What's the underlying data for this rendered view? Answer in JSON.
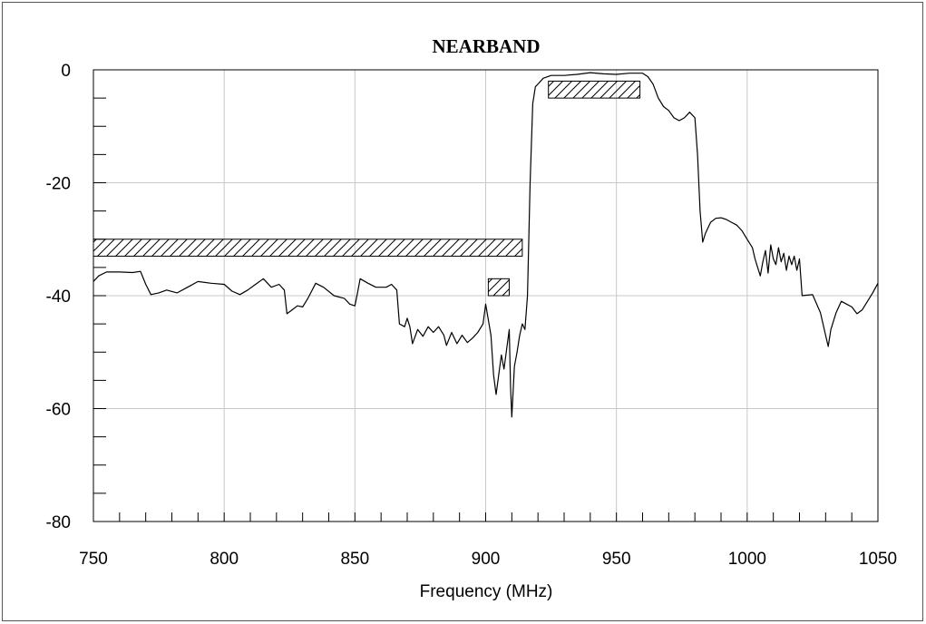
{
  "chart_data": {
    "type": "line",
    "title": "NEARBAND",
    "xlabel": "Frequency (MHz)",
    "ylabel": "",
    "xlim": [
      750,
      1050
    ],
    "ylim": [
      -80,
      0
    ],
    "grid": true,
    "x_ticks": [
      750,
      800,
      850,
      900,
      950,
      1000,
      1050
    ],
    "y_ticks": [
      0,
      -20,
      -40,
      -60,
      -80
    ],
    "colors": {
      "line": "#000000",
      "grid": "#c8c8c8",
      "mask": "#000000"
    },
    "series": [
      {
        "points": [
          [
            750,
            -37.5
          ],
          [
            752,
            -36.5
          ],
          [
            755,
            -35.8
          ],
          [
            760,
            -35.8
          ],
          [
            765,
            -35.9
          ],
          [
            768,
            -35.7
          ],
          [
            770,
            -38
          ],
          [
            772,
            -39.8
          ],
          [
            775,
            -39.5
          ],
          [
            778,
            -39
          ],
          [
            782,
            -39.5
          ],
          [
            786,
            -38.5
          ],
          [
            790,
            -37.5
          ],
          [
            795,
            -37.8
          ],
          [
            800,
            -38
          ],
          [
            803,
            -39.2
          ],
          [
            806,
            -39.8
          ],
          [
            809,
            -39
          ],
          [
            812,
            -38
          ],
          [
            815,
            -37
          ],
          [
            818,
            -38.5
          ],
          [
            821,
            -38
          ],
          [
            823,
            -39
          ],
          [
            824,
            -43.2
          ],
          [
            826,
            -42.5
          ],
          [
            828,
            -41.8
          ],
          [
            830,
            -42
          ],
          [
            832,
            -40.5
          ],
          [
            835,
            -37.8
          ],
          [
            838,
            -38.5
          ],
          [
            842,
            -40
          ],
          [
            846,
            -40.5
          ],
          [
            848,
            -41.5
          ],
          [
            850,
            -41.8
          ],
          [
            851,
            -39.5
          ],
          [
            852,
            -37
          ],
          [
            855,
            -37.8
          ],
          [
            858,
            -38.5
          ],
          [
            862,
            -38.5
          ],
          [
            864,
            -38
          ],
          [
            866,
            -39
          ],
          [
            867,
            -45
          ],
          [
            869,
            -45.5
          ],
          [
            870,
            -44
          ],
          [
            871,
            -45.5
          ],
          [
            872,
            -48.5
          ],
          [
            874,
            -46
          ],
          [
            876,
            -47.2
          ],
          [
            878,
            -45.5
          ],
          [
            880,
            -46.5
          ],
          [
            882,
            -45.5
          ],
          [
            884,
            -47
          ],
          [
            885,
            -48.8
          ],
          [
            887,
            -46.5
          ],
          [
            889,
            -48.5
          ],
          [
            891,
            -47
          ],
          [
            893,
            -48.3
          ],
          [
            895,
            -47.5
          ],
          [
            897,
            -46.5
          ],
          [
            899,
            -45
          ],
          [
            900,
            -41.5
          ],
          [
            902,
            -47
          ],
          [
            903,
            -54
          ],
          [
            904,
            -57.5
          ],
          [
            905,
            -54
          ],
          [
            906,
            -50.5
          ],
          [
            907,
            -53
          ],
          [
            908,
            -49.5
          ],
          [
            909,
            -46
          ],
          [
            909.5,
            -56
          ],
          [
            910,
            -61.5
          ],
          [
            911,
            -52.5
          ],
          [
            912,
            -50
          ],
          [
            913,
            -47
          ],
          [
            914,
            -45
          ],
          [
            915,
            -46
          ],
          [
            916,
            -40
          ],
          [
            917,
            -20
          ],
          [
            918,
            -6
          ],
          [
            919,
            -3
          ],
          [
            920,
            -2.5
          ],
          [
            922,
            -1.5
          ],
          [
            925,
            -1
          ],
          [
            930,
            -1
          ],
          [
            935,
            -0.8
          ],
          [
            940,
            -0.5
          ],
          [
            945,
            -0.7
          ],
          [
            950,
            -0.8
          ],
          [
            955,
            -0.6
          ],
          [
            960,
            -0.6
          ],
          [
            962,
            -1.2
          ],
          [
            964,
            -2.5
          ],
          [
            966,
            -5
          ],
          [
            968,
            -6.5
          ],
          [
            970,
            -7.2
          ],
          [
            972,
            -8.5
          ],
          [
            974,
            -9
          ],
          [
            976,
            -8.5
          ],
          [
            978,
            -7.5
          ],
          [
            980,
            -8.5
          ],
          [
            981,
            -15
          ],
          [
            982,
            -25
          ],
          [
            983,
            -30.5
          ],
          [
            984,
            -29
          ],
          [
            986,
            -27
          ],
          [
            988,
            -26.3
          ],
          [
            990,
            -26.2
          ],
          [
            992,
            -26.5
          ],
          [
            994,
            -27
          ],
          [
            996,
            -27.5
          ],
          [
            998,
            -28.5
          ],
          [
            1000,
            -30
          ],
          [
            1002,
            -31.5
          ],
          [
            1003,
            -33.5
          ],
          [
            1004,
            -35
          ],
          [
            1005,
            -36.5
          ],
          [
            1006,
            -34
          ],
          [
            1007,
            -32
          ],
          [
            1008,
            -36
          ],
          [
            1009,
            -31
          ],
          [
            1010,
            -33.5
          ],
          [
            1011,
            -34.5
          ],
          [
            1012,
            -31.5
          ],
          [
            1013,
            -34
          ],
          [
            1014,
            -32.5
          ],
          [
            1015,
            -35.5
          ],
          [
            1016,
            -33
          ],
          [
            1017,
            -34.5
          ],
          [
            1018,
            -33
          ],
          [
            1019,
            -35.5
          ],
          [
            1020,
            -33.5
          ],
          [
            1021,
            -40
          ],
          [
            1025,
            -39.8
          ],
          [
            1028,
            -43
          ],
          [
            1030,
            -47
          ],
          [
            1031,
            -49
          ],
          [
            1032,
            -46
          ],
          [
            1034,
            -43
          ],
          [
            1036,
            -41
          ],
          [
            1038,
            -41.5
          ],
          [
            1040,
            -42
          ],
          [
            1042,
            -43.2
          ],
          [
            1044,
            -42.5
          ],
          [
            1046,
            -41
          ],
          [
            1048,
            -39.5
          ],
          [
            1050,
            -37.8
          ]
        ]
      }
    ],
    "masks": [
      {
        "x0": 750,
        "x1": 914,
        "y0": -30,
        "y1": -33
      },
      {
        "x0": 901,
        "x1": 909,
        "y0": -37,
        "y1": -40
      },
      {
        "x0": 924,
        "x1": 959,
        "y0": -2,
        "y1": -5
      }
    ]
  }
}
